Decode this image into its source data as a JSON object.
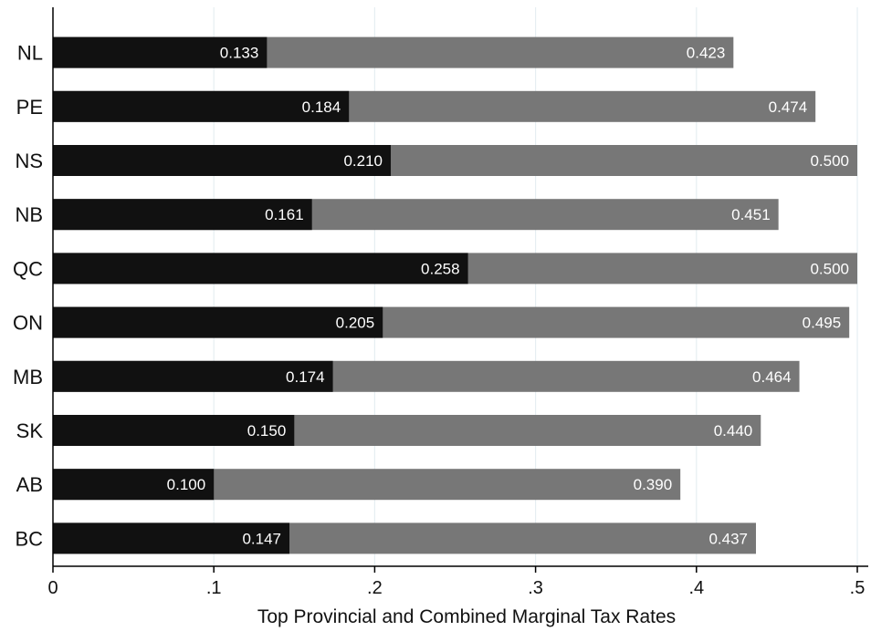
{
  "chart_data": {
    "type": "bar",
    "orientation": "horizontal",
    "stacked": "overlay",
    "title": "",
    "xlabel": "Top Provincial and Combined Marginal Tax Rates",
    "ylabel": "",
    "xlim": [
      0,
      0.5
    ],
    "xticks": [
      0,
      0.1,
      0.2,
      0.3,
      0.4,
      0.5
    ],
    "xtick_labels": [
      "0",
      ".1",
      ".2",
      ".3",
      ".4",
      ".5"
    ],
    "grid": true,
    "legend": "none",
    "categories": [
      "NL",
      "PE",
      "NS",
      "NB",
      "QC",
      "ON",
      "MB",
      "SK",
      "AB",
      "BC"
    ],
    "series": [
      {
        "color": "#777777",
        "values": [
          0.423,
          0.474,
          0.5,
          0.451,
          0.5,
          0.495,
          0.464,
          0.44,
          0.39,
          0.437
        ],
        "labels": [
          "0.423",
          "0.474",
          "0.500",
          "0.451",
          "0.500",
          "0.495",
          "0.464",
          "0.440",
          "0.390",
          "0.437"
        ]
      },
      {
        "color": "#111111",
        "values": [
          0.133,
          0.184,
          0.21,
          0.161,
          0.258,
          0.205,
          0.174,
          0.15,
          0.1,
          0.147
        ],
        "labels": [
          "0.133",
          "0.184",
          "0.210",
          "0.161",
          "0.258",
          "0.205",
          "0.174",
          "0.150",
          "0.100",
          "0.147"
        ]
      }
    ]
  }
}
